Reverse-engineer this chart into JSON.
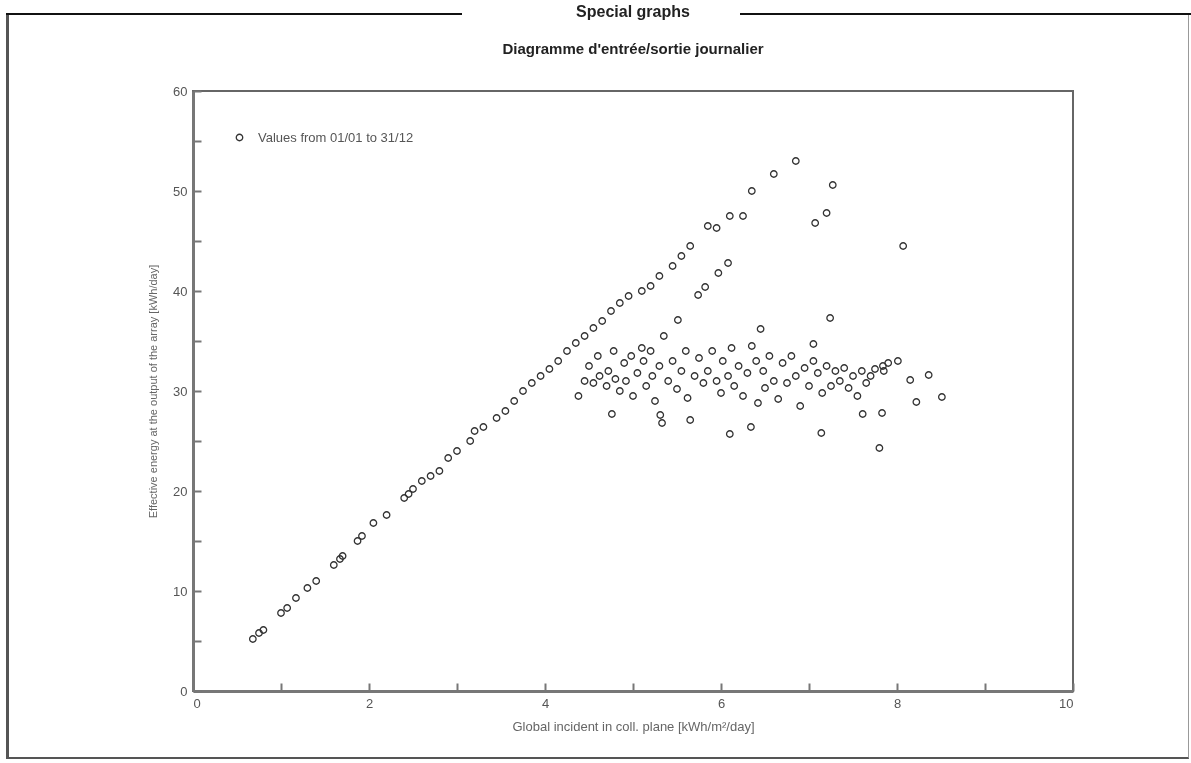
{
  "chart_data": {
    "type": "scatter",
    "title": "Special graphs",
    "subtitle": "Diagramme d'entrée/sortie journalier",
    "xlabel": "Global incident in coll. plane [kWh/m²/day]",
    "ylabel": "Effective energy at the output of the array [kWh/day]",
    "x": [
      0.68,
      0.75,
      0.8,
      1.0,
      1.07,
      1.17,
      1.3,
      1.4,
      1.6,
      1.67,
      1.7,
      1.87,
      1.92,
      2.05,
      2.2,
      2.4,
      2.45,
      2.5,
      2.6,
      2.7,
      2.8,
      2.9,
      3.0,
      3.15,
      3.2,
      3.3,
      3.45,
      3.55,
      3.65,
      3.75,
      3.85,
      3.95,
      4.05,
      4.15,
      4.25,
      4.35,
      4.45,
      4.55,
      4.65,
      4.75,
      4.85,
      4.95,
      5.1,
      5.2,
      5.3,
      5.45,
      5.55,
      5.65,
      5.85,
      5.95,
      6.1,
      6.25,
      6.35,
      6.6,
      6.85,
      7.07,
      7.2,
      7.27,
      8.07,
      7.24,
      5.97,
      6.08,
      5.74,
      5.82,
      5.51,
      4.38,
      4.76,
      6.1,
      6.34,
      7.14,
      7.8,
      8.15,
      8.22,
      8.36,
      8.51,
      8.01,
      7.84,
      7.61,
      7.83,
      5.31,
      5.65,
      5.33,
      6.45,
      7.05,
      4.45,
      4.5,
      4.55,
      4.6,
      4.62,
      4.7,
      4.72,
      4.78,
      4.8,
      4.85,
      4.9,
      4.92,
      4.98,
      5.0,
      5.05,
      5.1,
      5.12,
      5.15,
      5.2,
      5.22,
      5.25,
      5.3,
      5.35,
      5.4,
      5.45,
      5.5,
      5.55,
      5.6,
      5.62,
      5.7,
      5.75,
      5.8,
      5.85,
      5.9,
      5.95,
      6.0,
      6.02,
      6.08,
      6.12,
      6.15,
      6.2,
      6.25,
      6.3,
      6.35,
      6.4,
      6.42,
      6.48,
      6.5,
      6.55,
      6.6,
      6.65,
      6.7,
      6.75,
      6.8,
      6.85,
      6.9,
      6.95,
      7.0,
      7.05,
      7.1,
      7.15,
      7.2,
      7.25,
      7.3,
      7.35,
      7.4,
      7.45,
      7.5,
      7.55,
      7.6,
      7.65,
      7.7,
      7.75,
      7.85,
      7.9
    ],
    "series": [
      {
        "name": "Values from 01/01 to 31/12",
        "color": "#333333",
        "values": [
          5.2,
          5.8,
          6.1,
          7.8,
          8.3,
          9.3,
          10.3,
          11,
          12.6,
          13.2,
          13.5,
          15,
          15.5,
          16.8,
          17.6,
          19.3,
          19.7,
          20.2,
          21,
          21.5,
          22,
          23.3,
          24,
          25,
          26,
          26.4,
          27.3,
          28,
          29,
          30,
          30.8,
          31.5,
          32.2,
          33,
          34,
          34.8,
          35.5,
          36.3,
          37,
          38,
          38.8,
          39.5,
          40,
          40.5,
          41.5,
          42.5,
          43.5,
          44.5,
          46.5,
          46.3,
          47.5,
          47.5,
          50,
          51.7,
          53,
          46.8,
          47.8,
          50.6,
          44.5,
          37.3,
          41.8,
          42.8,
          39.6,
          40.4,
          37.1,
          29.5,
          27.7,
          25.7,
          26.4,
          25.8,
          24.3,
          31.1,
          28.9,
          31.6,
          29.4,
          33.0,
          32.5,
          27.7,
          27.8,
          27.6,
          27.1,
          26.8,
          36.2,
          34.7,
          31,
          32.5,
          30.8,
          33.5,
          31.5,
          30.5,
          32,
          34,
          31.2,
          30,
          32.8,
          31,
          33.5,
          29.5,
          31.8,
          34.3,
          33,
          30.5,
          34,
          31.5,
          29,
          32.5,
          35.5,
          31,
          33,
          30.2,
          32,
          34,
          29.3,
          31.5,
          33.3,
          30.8,
          32,
          34,
          31,
          29.8,
          33,
          31.5,
          34.3,
          30.5,
          32.5,
          29.5,
          31.8,
          34.5,
          33,
          28.8,
          32,
          30.3,
          33.5,
          31,
          29.2,
          32.8,
          30.8,
          33.5,
          31.5,
          28.5,
          32.3,
          30.5,
          33,
          31.8,
          29.8,
          32.5,
          30.5,
          32,
          31,
          32.3,
          30.3,
          31.5,
          29.5,
          32,
          30.8,
          31.5,
          32.2,
          32,
          32.8
        ]
      }
    ],
    "xlim": [
      0,
      10
    ],
    "xticks": [
      0,
      {
        "value": 1,
        "label": null
      },
      2,
      {
        "value": 3,
        "label": null
      },
      4,
      {
        "value": 5,
        "label": null
      },
      6,
      {
        "value": 7,
        "label": null
      },
      8,
      {
        "value": 9,
        "label": null
      },
      10
    ],
    "ylim": [
      0,
      60
    ],
    "yticks": [
      0,
      {
        "value": 5,
        "label": null
      },
      10,
      {
        "value": 15,
        "label": null
      },
      20,
      {
        "value": 25,
        "label": null
      },
      30,
      {
        "value": 35,
        "label": null
      },
      40,
      {
        "value": 45,
        "label": null
      },
      50,
      {
        "value": 55,
        "label": null
      },
      60
    ],
    "grid": false,
    "legend": "top left",
    "marker": "circle"
  }
}
